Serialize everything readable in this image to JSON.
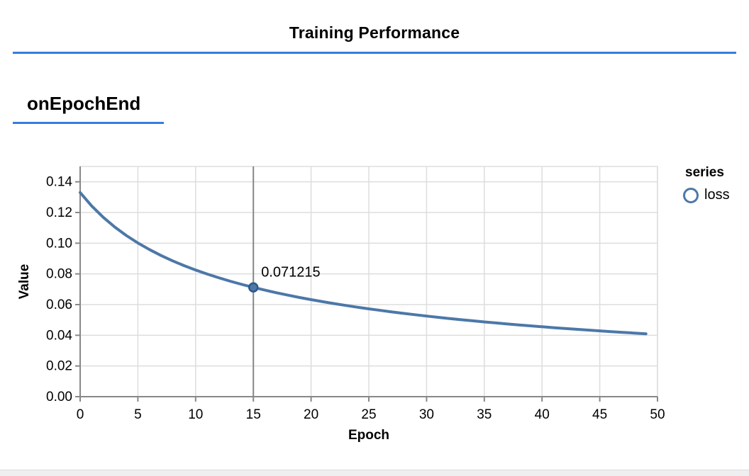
{
  "header": {
    "title": "Training Performance"
  },
  "section": {
    "title": "onEpochEnd"
  },
  "colors": {
    "accent_blue": "#357edd",
    "line_blue": "#4c78a8",
    "marker_stroke": "#30588c",
    "grid": "#dddddd",
    "axis_gray": "#888888",
    "rule_gray": "#878787",
    "panel_edge": "#efefef"
  },
  "chart_data": {
    "type": "line",
    "title": "",
    "xlabel": "Epoch",
    "ylabel": "Value",
    "xlim": [
      0,
      50
    ],
    "ylim": [
      0,
      0.15
    ],
    "xticks": [
      0,
      5,
      10,
      15,
      20,
      25,
      30,
      35,
      40,
      45,
      50
    ],
    "yticks": [
      0,
      0.02,
      0.04,
      0.06,
      0.08,
      0.1,
      0.12,
      0.14
    ],
    "grid": true,
    "legend": {
      "title": "series",
      "position": "right",
      "items": [
        "loss"
      ]
    },
    "series": [
      {
        "name": "loss",
        "color": "#4c78a8",
        "x": [
          0,
          1,
          2,
          3,
          4,
          5,
          6,
          7,
          8,
          9,
          10,
          11,
          12,
          13,
          14,
          15,
          16,
          17,
          18,
          19,
          20,
          21,
          22,
          23,
          24,
          25,
          26,
          27,
          28,
          29,
          30,
          31,
          32,
          33,
          34,
          35,
          36,
          37,
          38,
          39,
          40,
          41,
          42,
          43,
          44,
          45,
          46,
          47,
          48,
          49
        ],
        "values": [
          0.133,
          0.124247,
          0.116858,
          0.110518,
          0.105006,
          0.100156,
          0.095855,
          0.092005,
          0.088535,
          0.085388,
          0.082531,
          0.079899,
          0.077477,
          0.075237,
          0.07316,
          0.071215,
          0.069407,
          0.067717,
          0.06613,
          0.064636,
          0.063229,
          0.061898,
          0.060639,
          0.059444,
          0.058309,
          0.057229,
          0.0562,
          0.055218,
          0.05428,
          0.053382,
          0.052522,
          0.051697,
          0.050905,
          0.050144,
          0.049413,
          0.048708,
          0.04803,
          0.047375,
          0.046744,
          0.046134,
          0.045544,
          0.044974,
          0.044422,
          0.043886,
          0.043368,
          0.042865,
          0.042378,
          0.041905,
          0.041445,
          0.040999
        ]
      }
    ],
    "selected": {
      "x": 15,
      "y": 0.071215,
      "label": "0.071215"
    }
  }
}
